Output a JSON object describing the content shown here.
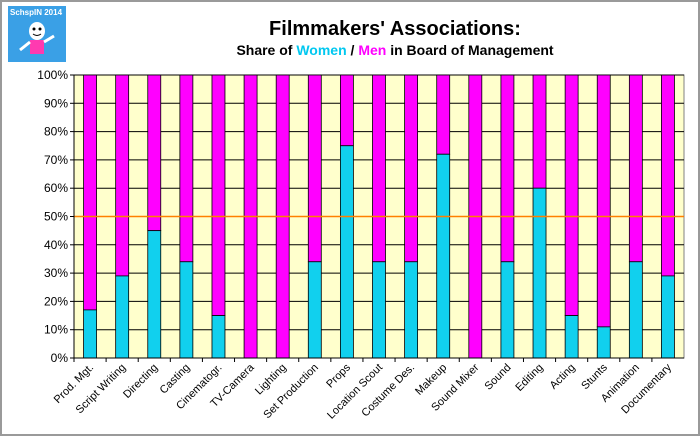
{
  "logo": {
    "text": "SchspIN 2014"
  },
  "header": {
    "title": "Filmmakers' Associations:",
    "subtitle_prefix": "Share of ",
    "subtitle_women": "Women",
    "subtitle_sep": " / ",
    "subtitle_men": "Men",
    "subtitle_suffix": " in Board of Management"
  },
  "colors": {
    "women": "#11d0ee",
    "men": "#ff00ff",
    "plot_bg": "#ffffcc",
    "reference_line": "#ff8000",
    "gridline": "#000000"
  },
  "chart_data": {
    "type": "bar",
    "stacked": true,
    "percent": true,
    "title": "Filmmakers' Associations:",
    "subtitle": "Share of Women / Men in Board of Management",
    "ylim": [
      0,
      100
    ],
    "yticks": [
      "0%",
      "10%",
      "20%",
      "30%",
      "40%",
      "50%",
      "60%",
      "70%",
      "80%",
      "90%",
      "100%"
    ],
    "grid": true,
    "reference_line": 50,
    "categories": [
      "Prod. Mgt.",
      "Script Writing",
      "Directing",
      "Casting",
      "Cinematogr.",
      "TV-Camera",
      "Lighting",
      "Set Production",
      "Props",
      "Location Scout",
      "Costume Des.",
      "Makeup",
      "Sound Mixer",
      "Sound",
      "Editing",
      "Acting",
      "Stunts",
      "Animation",
      "Documentary"
    ],
    "series": [
      {
        "name": "Women",
        "values": [
          17,
          29,
          45,
          34,
          15,
          0,
          0,
          34,
          75,
          34,
          34,
          72,
          0,
          34,
          60,
          15,
          11,
          34,
          29
        ]
      },
      {
        "name": "Men",
        "values": [
          83,
          71,
          55,
          66,
          85,
          100,
          100,
          66,
          25,
          66,
          66,
          28,
          100,
          66,
          40,
          85,
          89,
          66,
          71
        ]
      }
    ]
  }
}
